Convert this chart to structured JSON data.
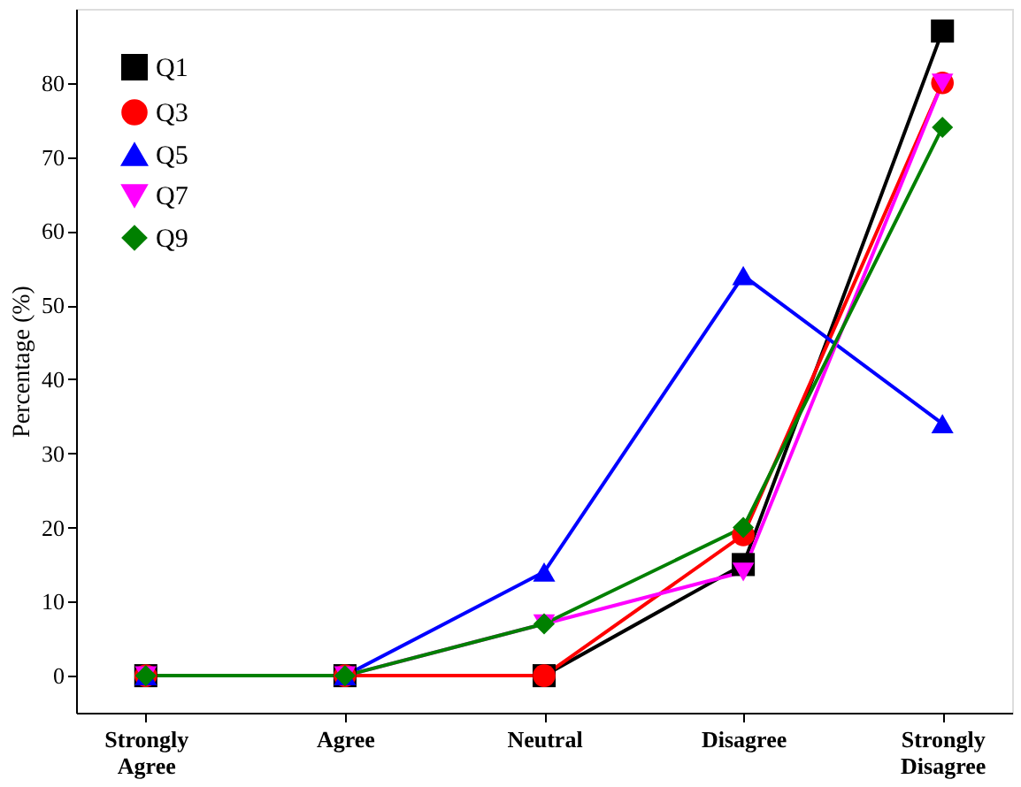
{
  "chart_data": {
    "type": "line",
    "ylabel": "Percentage (%)",
    "categories": [
      "Strongly Agree",
      "Agree",
      "Neutral",
      "Disagree",
      "Strongly Disagree"
    ],
    "series": [
      {
        "name": "Q1",
        "color": "#000000",
        "marker": "square",
        "values": [
          0,
          0,
          0,
          15,
          87
        ]
      },
      {
        "name": "Q3",
        "color": "#ff0000",
        "marker": "circle",
        "values": [
          0,
          0,
          0,
          19,
          80
        ]
      },
      {
        "name": "Q5",
        "color": "#0000ff",
        "marker": "triangle",
        "values": [
          0,
          0,
          14,
          54,
          34
        ]
      },
      {
        "name": "Q7",
        "color": "#ff00ff",
        "marker": "triangle-down",
        "values": [
          0,
          0,
          7,
          14,
          80
        ]
      },
      {
        "name": "Q9",
        "color": "#008000",
        "marker": "diamond",
        "values": [
          0,
          0,
          7,
          20,
          74
        ]
      }
    ],
    "ylim": [
      -5,
      90
    ],
    "yticks": [
      0,
      10,
      20,
      30,
      40,
      50,
      60,
      70,
      80
    ],
    "legend": "top left",
    "line_style": "solid"
  }
}
